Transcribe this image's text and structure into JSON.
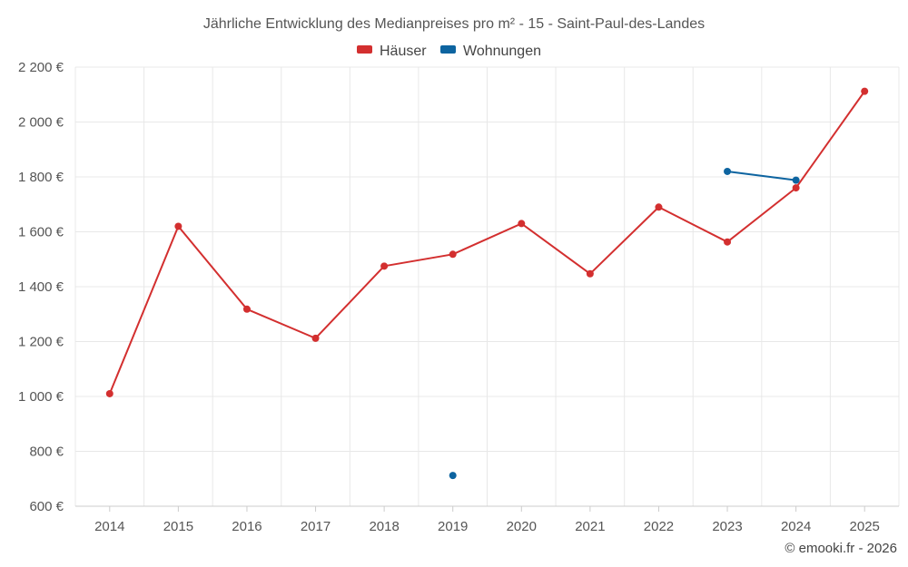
{
  "chart_data": {
    "type": "line",
    "title": "Jährliche Entwicklung des Medianpreises pro m² - 15 - Saint-Paul-des-Landes",
    "x": [
      "2014",
      "2015",
      "2016",
      "2017",
      "2018",
      "2019",
      "2020",
      "2021",
      "2022",
      "2023",
      "2024",
      "2025"
    ],
    "ylim": [
      600,
      2200
    ],
    "yticks": [
      600,
      800,
      1000,
      1200,
      1400,
      1600,
      1800,
      2000,
      2200
    ],
    "ytick_labels": [
      "600 €",
      "800 €",
      "1 000 €",
      "1 200 €",
      "1 400 €",
      "1 600 €",
      "1 800 €",
      "2 000 €",
      "2 200 €"
    ],
    "grid": true,
    "legend_position": "top-center",
    "series": [
      {
        "name": "Häuser",
        "color": "#d32f2f",
        "values": [
          1010,
          1620,
          1318,
          1212,
          1475,
          1518,
          1630,
          1447,
          1690,
          1563,
          1760,
          2112
        ]
      },
      {
        "name": "Wohnungen",
        "color": "#0d64a0",
        "values": [
          null,
          null,
          null,
          null,
          null,
          712,
          null,
          null,
          null,
          1820,
          1788,
          null
        ]
      }
    ]
  },
  "credit": "© emooki.fr - 2026"
}
